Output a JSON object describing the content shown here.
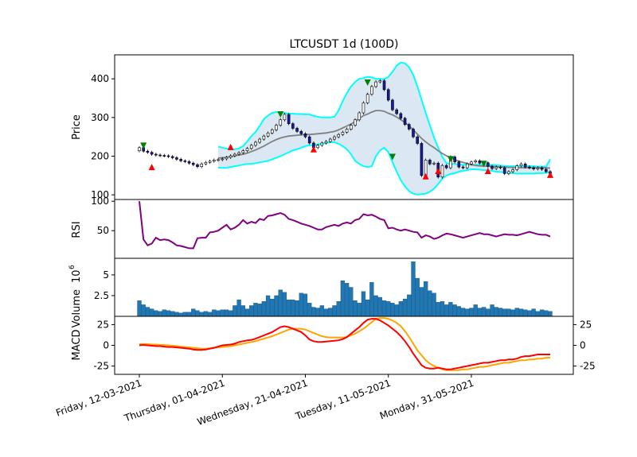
{
  "chart_data": {
    "type": "line",
    "title": "LTCUSDT 1d (100D)",
    "x_tick_labels": [
      "Friday, 12-03-2021",
      "Thursday, 01-04-2021",
      "Wednesday, 21-04-2021",
      "Tuesday, 11-05-2021",
      "Monday, 31-05-2021"
    ],
    "x_ticks_day_index": [
      0,
      20,
      40,
      60,
      80
    ],
    "days": 100,
    "price_panel": {
      "ylabel": "Price",
      "yticks": [
        100,
        200,
        300,
        400
      ],
      "ylim": [
        88,
        462
      ],
      "close": [
        222,
        213,
        210,
        205,
        203,
        202,
        201,
        199,
        196,
        192,
        188,
        186,
        182,
        178,
        173,
        180,
        184,
        187,
        190,
        191,
        193,
        197,
        201,
        205,
        209,
        214,
        220,
        228,
        236,
        244,
        252,
        260,
        268,
        280,
        294,
        308,
        284,
        272,
        264,
        258,
        250,
        234,
        222,
        228,
        234,
        238,
        244,
        250,
        256,
        262,
        270,
        280,
        294,
        312,
        338,
        360,
        380,
        392,
        395,
        372,
        345,
        320,
        310,
        298,
        282,
        270,
        250,
        233,
        150,
        190,
        180,
        182,
        146,
        176,
        170,
        198,
        185,
        172,
        170,
        180,
        185,
        188,
        182,
        183,
        174,
        168,
        172,
        170,
        155,
        160,
        165,
        175,
        180,
        172,
        170,
        167,
        170,
        166,
        160,
        155
      ],
      "sma": [
        null,
        null,
        null,
        null,
        null,
        null,
        null,
        null,
        null,
        null,
        null,
        null,
        null,
        null,
        null,
        null,
        null,
        null,
        null,
        195,
        196,
        197,
        199,
        201,
        203,
        205,
        208,
        212,
        216,
        221,
        226,
        232,
        238,
        243,
        247,
        250,
        252,
        253,
        254,
        255,
        256,
        256,
        257,
        258,
        259,
        260,
        262,
        264,
        268,
        273,
        278,
        283,
        289,
        297,
        305,
        309,
        314,
        318,
        318,
        316,
        311,
        307,
        301,
        294,
        287,
        278,
        268,
        257,
        246,
        237,
        229,
        222,
        214,
        207,
        201,
        196,
        191,
        187,
        184,
        181,
        178,
        176,
        175,
        174,
        174,
        173,
        173,
        172,
        172,
        171,
        171,
        170,
        170,
        170,
        170,
        170,
        170,
        170,
        170,
        169
      ],
      "bb_upper": [
        null,
        null,
        null,
        null,
        null,
        null,
        null,
        null,
        null,
        null,
        null,
        null,
        null,
        null,
        null,
        null,
        null,
        null,
        null,
        225,
        222,
        220,
        218,
        218,
        220,
        226,
        238,
        252,
        262,
        278,
        296,
        305,
        312,
        314,
        313,
        312,
        310,
        310,
        309,
        309,
        308,
        308,
        304,
        302,
        300,
        300,
        300,
        302,
        318,
        342,
        363,
        380,
        392,
        400,
        402,
        405,
        404,
        400,
        400,
        399,
        405,
        418,
        434,
        442,
        440,
        430,
        410,
        380,
        346,
        312,
        280,
        248,
        222,
        198,
        182,
        180,
        180,
        178,
        178,
        178,
        178,
        178,
        178,
        178,
        178,
        177,
        177,
        176,
        175,
        174,
        174,
        174,
        174,
        174,
        174,
        174,
        173,
        173,
        173,
        192
      ],
      "bb_lower": [
        null,
        null,
        null,
        null,
        null,
        null,
        null,
        null,
        null,
        null,
        null,
        null,
        null,
        null,
        null,
        null,
        null,
        null,
        null,
        170,
        170,
        170,
        172,
        174,
        176,
        178,
        180,
        180,
        182,
        184,
        186,
        188,
        192,
        196,
        200,
        205,
        210,
        215,
        218,
        222,
        226,
        228,
        228,
        230,
        232,
        234,
        236,
        236,
        232,
        226,
        218,
        205,
        188,
        180,
        174,
        172,
        174,
        200,
        215,
        222,
        210,
        185,
        160,
        138,
        122,
        110,
        103,
        101,
        102,
        103,
        108,
        116,
        128,
        142,
        150,
        154,
        156,
        160,
        162,
        164,
        166,
        166,
        165,
        164,
        163,
        162,
        160,
        159,
        158,
        157,
        156,
        155,
        155,
        155,
        155,
        155,
        156,
        156,
        157,
        158
      ],
      "buy_markers": [
        {
          "day": 3,
          "price": 172
        },
        {
          "day": 22,
          "price": 224
        },
        {
          "day": 42,
          "price": 218
        },
        {
          "day": 69,
          "price": 148
        },
        {
          "day": 72,
          "price": 162
        },
        {
          "day": 84,
          "price": 162
        },
        {
          "day": 99,
          "price": 152
        }
      ],
      "sell_markers": [
        {
          "day": 1,
          "price": 227
        },
        {
          "day": 34,
          "price": 308
        },
        {
          "day": 55,
          "price": 390
        },
        {
          "day": 61,
          "price": 198
        },
        {
          "day": 75,
          "price": 192
        },
        {
          "day": 83,
          "price": 180
        }
      ]
    },
    "rsi_panel": {
      "ylabel": "RSI",
      "yticks": [
        50,
        100
      ],
      "ylim": [
        3,
        103
      ],
      "values": [
        100,
        35,
        25,
        28,
        38,
        34,
        35,
        34,
        30,
        25,
        24,
        22,
        20,
        20,
        37,
        38,
        38,
        47,
        48,
        50,
        55,
        60,
        52,
        55,
        60,
        68,
        62,
        65,
        63,
        70,
        68,
        75,
        76,
        78,
        80,
        77,
        70,
        68,
        65,
        62,
        60,
        58,
        55,
        52,
        52,
        56,
        58,
        60,
        58,
        62,
        64,
        62,
        68,
        70,
        78,
        76,
        77,
        74,
        70,
        68,
        54,
        55,
        52,
        50,
        52,
        50,
        48,
        47,
        38,
        42,
        40,
        36,
        38,
        42,
        45,
        44,
        42,
        40,
        38,
        40,
        42,
        44,
        46,
        44,
        44,
        42,
        40,
        42,
        44,
        43,
        43,
        42,
        44,
        46,
        48,
        46,
        44,
        43,
        43,
        40
      ]
    },
    "volume_panel": {
      "ylabel": "Volume",
      "scale_label": "10",
      "scale_exp": "6",
      "yticks": [
        2.5,
        5.0
      ],
      "ylim": [
        0,
        7.0
      ],
      "values": [
        1.9,
        1.4,
        1.1,
        0.9,
        0.7,
        0.6,
        0.8,
        0.7,
        0.6,
        0.5,
        0.4,
        0.5,
        0.5,
        0.9,
        0.7,
        0.5,
        0.6,
        0.5,
        0.8,
        0.7,
        0.8,
        0.8,
        0.7,
        1.3,
        2.0,
        1.3,
        0.9,
        1.3,
        1.6,
        1.5,
        1.8,
        2.5,
        2.1,
        2.5,
        3.2,
        2.9,
        2.0,
        2.0,
        1.9,
        2.8,
        2.7,
        1.6,
        1.1,
        1.0,
        1.3,
        0.9,
        1.0,
        1.3,
        1.8,
        4.3,
        4.0,
        3.5,
        1.9,
        1.6,
        3.0,
        2.0,
        4.1,
        2.5,
        2.3,
        1.9,
        1.8,
        1.6,
        1.4,
        1.8,
        2.1,
        2.6,
        6.6,
        4.6,
        3.5,
        4.2,
        3.1,
        2.8,
        1.7,
        1.8,
        1.4,
        1.7,
        1.4,
        1.2,
        1.0,
        0.9,
        1.0,
        1.4,
        1.0,
        1.1,
        0.9,
        1.4,
        1.1,
        1.0,
        0.9,
        0.9,
        0.8,
        1.0,
        0.9,
        0.8,
        0.7,
        0.9,
        0.6,
        0.8,
        0.7,
        0.6
      ]
    },
    "macd_panel": {
      "ylabel": "MACD",
      "yticks": [
        -25,
        0,
        25
      ],
      "right_yticks": [
        -25,
        0,
        25
      ],
      "ylim": [
        -35,
        35
      ],
      "macd": [
        0,
        0.5,
        0,
        -0.5,
        -1,
        -1,
        -1.5,
        -2,
        -2,
        -2.5,
        -3,
        -3.5,
        -4,
        -5,
        -5.5,
        -5.5,
        -5,
        -4,
        -3,
        -1.5,
        0,
        0.5,
        1,
        2,
        4,
        5,
        6,
        6.5,
        8,
        10,
        12,
        14,
        16,
        19,
        22,
        23,
        22,
        20,
        18,
        16,
        12,
        7,
        5,
        4,
        4,
        4.5,
        5,
        5.5,
        6,
        7.5,
        10,
        14,
        18,
        22,
        27,
        31,
        32,
        32,
        30,
        27,
        24,
        20,
        16,
        11,
        5,
        -2,
        -10,
        -17,
        -24,
        -27,
        -28,
        -28,
        -27,
        -28,
        -29,
        -29,
        -28,
        -27,
        -26,
        -25,
        -24,
        -23,
        -22,
        -21,
        -21,
        -20,
        -19,
        -18,
        -18,
        -17,
        -17,
        -16,
        -14,
        -13,
        -13,
        -12,
        -11,
        -11,
        -11,
        -11
      ],
      "signal": [
        1.5,
        1.5,
        1.5,
        1,
        1,
        0.5,
        0.5,
        0,
        -0.5,
        -1,
        -1.5,
        -2,
        -2.5,
        -3,
        -3.5,
        -4,
        -4,
        -3.5,
        -3,
        -2.5,
        -2,
        -1.5,
        -1,
        0,
        1,
        2,
        3,
        4,
        5,
        6.5,
        8,
        9.5,
        11,
        13,
        15,
        17,
        19,
        20,
        20,
        20,
        19,
        17,
        15,
        13,
        11,
        10,
        9.5,
        9.5,
        9.5,
        9.5,
        10,
        12,
        14,
        17,
        20,
        24,
        28,
        32,
        33,
        33,
        32,
        30,
        27,
        23,
        17,
        10,
        2,
        -6,
        -12,
        -18,
        -22,
        -25,
        -27,
        -29,
        -30,
        -30,
        -30,
        -30,
        -29,
        -29,
        -28,
        -27,
        -26,
        -26,
        -25,
        -24,
        -23,
        -22,
        -21,
        -21,
        -20,
        -19,
        -18,
        -18,
        -17,
        -17,
        -16,
        -16,
        -15,
        -15
      ]
    },
    "colors": {
      "candle_up": "#ffffff",
      "candle_down": "#1a1aa0",
      "sma": "#808080",
      "bb_band": "#00ffff",
      "bb_fill": "#dbe7f2",
      "buy_marker": "#ff0000",
      "sell_marker": "#008000",
      "rsi": "#800080",
      "volume": "#1f77b4",
      "macd": "#ff0000",
      "signal": "#ffa500"
    },
    "grid": false
  }
}
